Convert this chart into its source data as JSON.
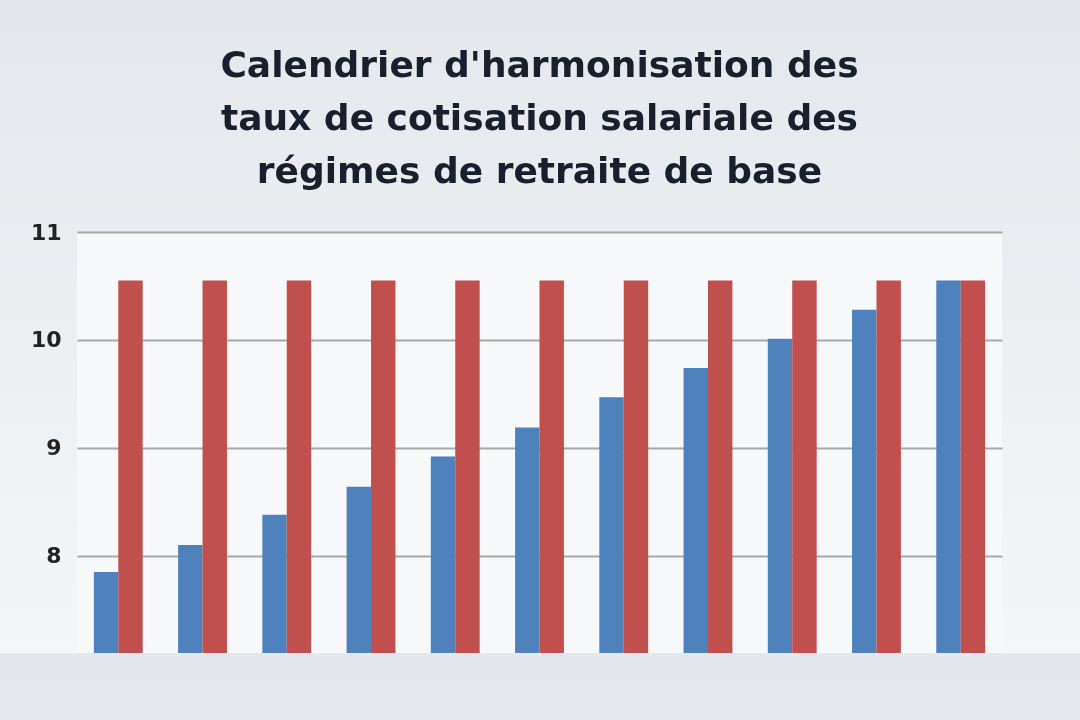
{
  "chart_data": {
    "type": "bar",
    "title": "Calendrier d'harmonisation des taux de cotisation salariale des régimes de retraite de base",
    "categories": [
      null,
      null,
      null,
      null,
      null,
      null,
      null,
      null,
      null,
      null,
      null
    ],
    "series": [
      {
        "color": "#4f81bd",
        "values": [
          7.85,
          8.1,
          8.38,
          8.64,
          8.92,
          9.19,
          9.47,
          9.74,
          10.01,
          10.28,
          10.55
        ]
      },
      {
        "color": "#c0504d",
        "values": [
          10.55,
          10.55,
          10.55,
          10.55,
          10.55,
          10.55,
          10.55,
          10.55,
          10.55,
          10.55,
          10.55
        ]
      }
    ],
    "ylim": [
      7.1,
      11
    ],
    "yticks": [
      8,
      9,
      10,
      11
    ],
    "grid": "y",
    "tick_labels": "y"
  }
}
